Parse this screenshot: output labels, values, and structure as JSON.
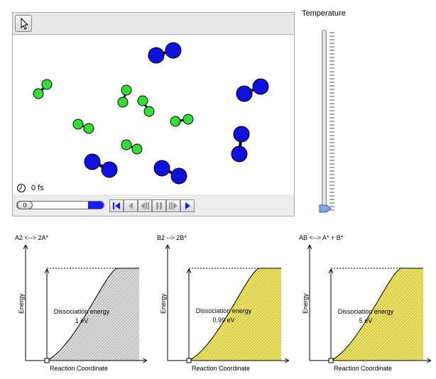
{
  "sim": {
    "time_label": "0 fs",
    "time_slider_value": "0",
    "temperature_label": "Temperature",
    "temperature_level_percent": 0
  },
  "plots": [
    {
      "title": "A2 <--> 2A*",
      "ylabel": "Energy",
      "xlabel": "Reaction Coordinate",
      "energy_label": "Dissociation energy",
      "energy_value": "1 eV",
      "fill": "#c8c8c8"
    },
    {
      "title": "B2 --> 2B*",
      "ylabel": "Energy",
      "xlabel": "Reaction Coordinate",
      "energy_label": "Dissociation energy",
      "energy_value": "0.99 eV",
      "fill": "#e8e05a"
    },
    {
      "title": "AB <--> A* + B*",
      "ylabel": "Energy",
      "xlabel": "Reaction Coordinate",
      "energy_label": "Dissociation energy",
      "energy_value": "5 eV",
      "fill": "#e8e05a"
    }
  ],
  "colors": {
    "atom_a": "#33dd33",
    "atom_b": "#1111dd",
    "accent": "#1a1aff"
  }
}
